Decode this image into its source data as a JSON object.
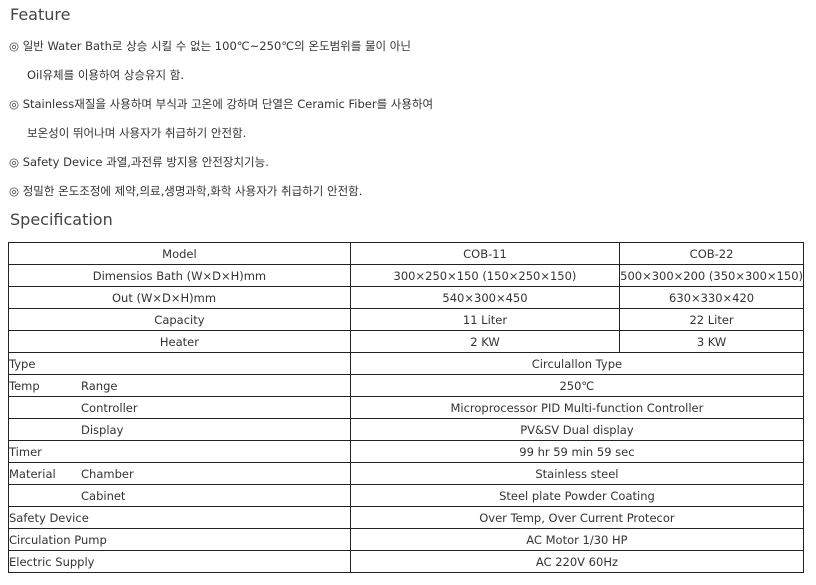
{
  "feature": {
    "title": "Feature",
    "lines": [
      "◎ 일반 Water Bath로 상승 시킬 수 없는 100℃~250℃의 온도범위를 물이 아닌",
      "Oil유체를  이용하여 상승유지 함.",
      "◎ Stainless재질을 사용하며 부식과 고온에 강하며 단열은 Ceramic Fiber를 사용하여",
      "보온성이 뛰어나며 사용자가 취급하기 안전함.",
      "◎ Safety Device 과열,과전류 방지용 안전장치기능.",
      "◎ 정밀한 온도조정에 제약,의료,생명과학,화학 사용자가 취급하기 안전함."
    ]
  },
  "spec": {
    "title": "Specification",
    "model_rows": [
      [
        "Model",
        "COB-11",
        "COB-22"
      ],
      [
        "Dimensios  Bath (W×D×H)mm",
        "300×250×150 (150×250×150)",
        "500×300×200 (350×300×150)"
      ],
      [
        "Out  (W×D×H)mm",
        "540×300×450",
        "630×330×420"
      ],
      [
        "Capacity",
        "11 Liter",
        "22 Liter"
      ],
      [
        "Heater",
        "2 KW",
        "3 KW"
      ]
    ],
    "common_rows": [
      [
        "Type",
        "",
        "Circulallon Type"
      ],
      [
        "Temp",
        "Range",
        "250℃"
      ],
      [
        "",
        "Controller",
        "Microprocessor PID Multi-function Controller"
      ],
      [
        "",
        "Display",
        "PV&SV Dual display"
      ],
      [
        "Timer",
        "",
        "99 hr 59 min 59 sec"
      ],
      [
        "Material",
        "Chamber",
        "Stainless steel"
      ],
      [
        "",
        "Cabinet",
        "Steel plate Powder Coating"
      ],
      [
        "Safety Device",
        "",
        "Over Temp, Over Current Protecor"
      ],
      [
        "Circulation Pump",
        "",
        "AC Motor 1/30 HP"
      ],
      [
        "Electric Supply",
        "",
        "AC 220V 60Hz"
      ]
    ]
  }
}
